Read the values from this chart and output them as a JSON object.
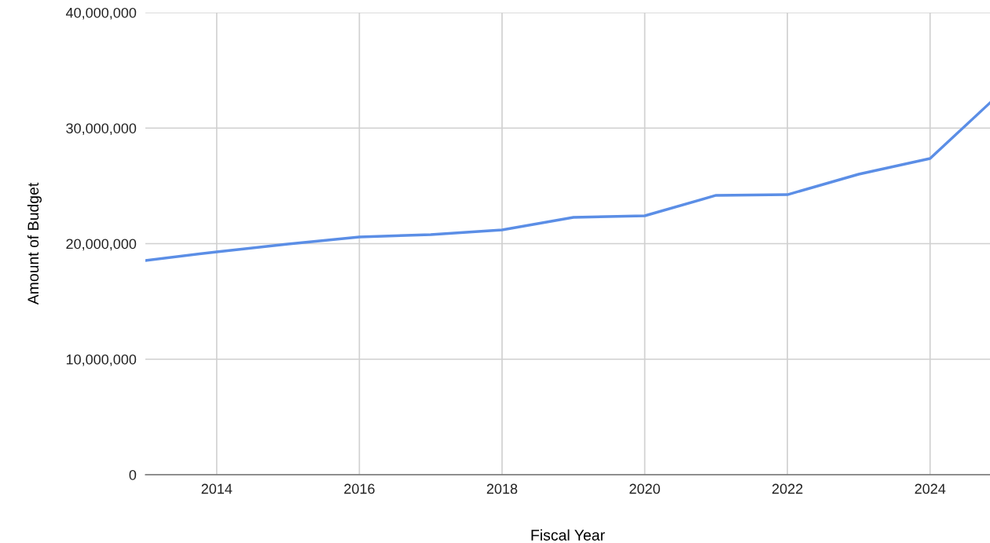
{
  "chart_data": {
    "type": "line",
    "xlabel": "Fiscal Year",
    "ylabel": "Amount of Budget",
    "x": [
      2013,
      2014,
      2015,
      2016,
      2017,
      2018,
      2019,
      2020,
      2021,
      2022,
      2023,
      2024,
      2024.84
    ],
    "series": [
      {
        "color": "#5b8ee6",
        "values": [
          18540000,
          19290000,
          19970000,
          20580000,
          20780000,
          21190000,
          22270000,
          22410000,
          24180000,
          24240000,
          26010000,
          27370000,
          32190000
        ]
      }
    ],
    "xlim": [
      2013,
      2024.84
    ],
    "xticks": [
      2014,
      2016,
      2018,
      2020,
      2022,
      2024
    ],
    "ylim": [
      0,
      40000000
    ],
    "yticks": [
      {
        "value": 0,
        "label": "0"
      },
      {
        "value": 10000000,
        "label": "10,000,000"
      },
      {
        "value": 20000000,
        "label": "20,000,000"
      },
      {
        "value": 30000000,
        "label": "30,000,000"
      },
      {
        "value": 40000000,
        "label": "40,000,000"
      }
    ],
    "grid": true,
    "marker": "none",
    "line_style": "solid",
    "legend": false
  }
}
